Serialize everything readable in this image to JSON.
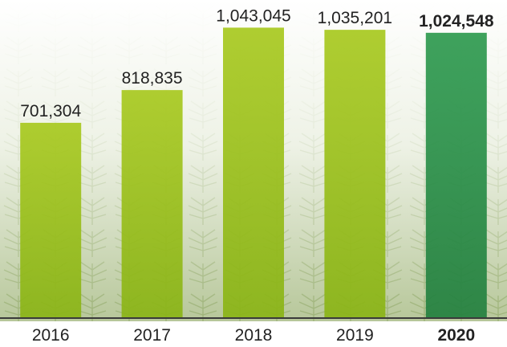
{
  "chart_data": {
    "type": "bar",
    "categories": [
      "2016",
      "2017",
      "2018",
      "2019",
      "2020"
    ],
    "values": [
      701304,
      818835,
      1043045,
      1035201,
      1024548
    ],
    "value_labels": [
      "701,304",
      "818,835",
      "1,043,045",
      "1,035,201",
      "1,024,548"
    ],
    "highlight_index": 4,
    "ylim": [
      0,
      1050000
    ],
    "grid": false,
    "title": "",
    "xlabel": "",
    "ylabel": ""
  },
  "colors": {
    "bar": "#9cc11e",
    "bar_highlight": "#2f9a4c",
    "baseline": "#3a3a3a",
    "text": "#222222",
    "background_foliage": "#b9cc98"
  },
  "background": {
    "icon": "palm-plantation-photo"
  }
}
